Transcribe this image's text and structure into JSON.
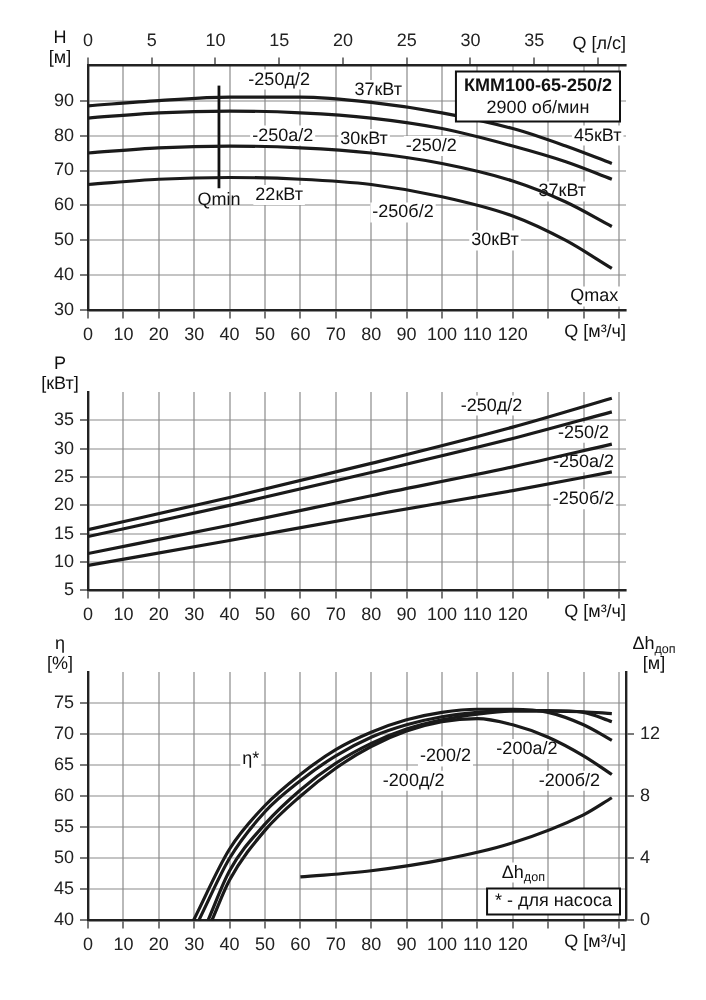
{
  "chart_data": [
    {
      "type": "line",
      "title": "КММ100-65-250/2",
      "subtitle": "2900 об/мин",
      "xlabel": "Q [м³/ч]",
      "x2label": "Q [л/с]",
      "ylabel": "H [м]",
      "xlim": [
        0,
        152
      ],
      "xticks": [
        0,
        10,
        20,
        30,
        40,
        50,
        60,
        70,
        80,
        90,
        100,
        110,
        120,
        {
          "value": 130,
          "label": null
        },
        {
          "value": 140,
          "label": null
        },
        {
          "value": 150,
          "label": null
        }
      ],
      "x2lim": [
        0,
        42.2
      ],
      "x2ticks": [
        0,
        5,
        10,
        15,
        20,
        25,
        30,
        35,
        {
          "value": 40,
          "label": null
        }
      ],
      "ylim": [
        30,
        100
      ],
      "yticks": [
        30,
        40,
        50,
        60,
        70,
        80,
        90
      ],
      "grid": true,
      "x": [
        0,
        20,
        40,
        60,
        80,
        100,
        120,
        135,
        148
      ],
      "series": [
        {
          "color": "#1a1a1a",
          "values": [
            88.5,
            90,
            91,
            91,
            89.5,
            86.5,
            82,
            77,
            72
          ]
        },
        {
          "color": "#1a1a1a",
          "values": [
            85,
            86.5,
            87,
            86.5,
            85,
            82,
            77,
            72.5,
            67.5
          ]
        },
        {
          "color": "#1a1a1a",
          "values": [
            75,
            76.5,
            77,
            76.5,
            75,
            72,
            67,
            61,
            54
          ]
        },
        {
          "color": "#1a1a1a",
          "values": [
            66,
            67.5,
            68,
            67.5,
            66,
            62.5,
            57,
            50,
            42
          ]
        }
      ],
      "ref_lines": [
        {
          "axis": "x",
          "value": 37,
          "label": "Qmin"
        }
      ],
      "annotations": [
        {
          "text": "-250д/2",
          "x": 54,
          "y": 96
        },
        {
          "text": "37кВт",
          "x": 82,
          "y": 93
        },
        {
          "text": "-250а/2",
          "x": 55,
          "y": 80
        },
        {
          "text": "30кВт",
          "x": 78,
          "y": 79
        },
        {
          "text": "-250/2",
          "x": 97,
          "y": 77
        },
        {
          "text": "45кВт",
          "x": 144,
          "y": 80
        },
        {
          "text": "22кВт",
          "x": 54,
          "y": 63
        },
        {
          "text": "-250б/2",
          "x": 89,
          "y": 58
        },
        {
          "text": "37кВт",
          "x": 134,
          "y": 64
        },
        {
          "text": "30кВт",
          "x": 115,
          "y": 50
        },
        {
          "text": "Qmax",
          "x": 143,
          "y": 34
        }
      ]
    },
    {
      "type": "line",
      "xlabel": "Q [м³/ч]",
      "ylabel": "P [кВт]",
      "xlim": [
        0,
        152
      ],
      "xticks": [
        0,
        10,
        20,
        30,
        40,
        50,
        60,
        70,
        80,
        90,
        100,
        110,
        120,
        {
          "value": 130,
          "label": null
        },
        {
          "value": 140,
          "label": null
        },
        {
          "value": 150,
          "label": null
        }
      ],
      "ylim": [
        5,
        40
      ],
      "yticks": [
        5,
        10,
        15,
        20,
        25,
        30,
        35
      ],
      "grid": true,
      "x": [
        0,
        40,
        80,
        120,
        148
      ],
      "series": [
        {
          "color": "#1a1a1a",
          "values": [
            15.7,
            21.4,
            27.4,
            33.8,
            38.9
          ]
        },
        {
          "color": "#1a1a1a",
          "values": [
            14.5,
            20,
            25.8,
            31.8,
            36.5
          ]
        },
        {
          "color": "#1a1a1a",
          "values": [
            11.5,
            16.5,
            21.7,
            26.8,
            30.8
          ]
        },
        {
          "color": "#1a1a1a",
          "values": [
            9.4,
            13.8,
            18.3,
            22.6,
            25.9
          ]
        }
      ],
      "annotations": [
        {
          "text": "-250д/2",
          "x": 114,
          "y": 37.6
        },
        {
          "text": "-250/2",
          "x": 140,
          "y": 32.8
        },
        {
          "text": "-250а/2",
          "x": 140,
          "y": 27.6
        },
        {
          "text": "-250б/2",
          "x": 140,
          "y": 21.1
        }
      ]
    },
    {
      "type": "line",
      "xlabel": "Q [м³/ч]",
      "ylabel": "η [%]",
      "y2label": "Δh$_{доп}$ [м]",
      "xlim": [
        0,
        152
      ],
      "xticks": [
        0,
        10,
        20,
        30,
        40,
        50,
        60,
        70,
        80,
        90,
        100,
        110,
        120,
        {
          "value": 130,
          "label": null
        },
        {
          "value": 140,
          "label": null
        },
        {
          "value": 150,
          "label": null
        }
      ],
      "ylim": [
        40,
        80
      ],
      "yticks": [
        40,
        45,
        50,
        55,
        60,
        65,
        70,
        75
      ],
      "y2lim": [
        0,
        16
      ],
      "y2ticks": [
        0,
        4,
        8,
        12
      ],
      "grid": true,
      "series": [
        {
          "color": "#1a1a1a",
          "x": [
            29.8,
            40,
            50,
            60,
            70,
            80,
            90,
            100,
            110,
            120,
            130,
            140,
            148
          ],
          "values": [
            40,
            51.5,
            58.5,
            63.5,
            67.5,
            70.3,
            72.3,
            73.5,
            74,
            74,
            73.5,
            71.5,
            69
          ]
        },
        {
          "color": "#1a1a1a",
          "x": [
            31.3,
            40,
            50,
            60,
            70,
            80,
            90,
            100,
            110,
            120,
            130,
            140,
            148
          ],
          "values": [
            40,
            50,
            57.5,
            62.5,
            66.5,
            69.5,
            71.5,
            72.8,
            73.5,
            73.8,
            73.8,
            73.5,
            72
          ]
        },
        {
          "color": "#1a1a1a",
          "x": [
            33.9,
            40,
            50,
            60,
            70,
            80,
            90,
            100,
            110,
            120,
            130,
            140,
            148
          ],
          "values": [
            40,
            48,
            55.5,
            61,
            65.3,
            68.5,
            70.8,
            72.3,
            73.2,
            73.7,
            73.7,
            73.6,
            73.3
          ]
        },
        {
          "color": "#1a1a1a",
          "x": [
            35,
            40,
            50,
            60,
            70,
            80,
            90,
            100,
            110,
            120,
            130,
            140,
            148
          ],
          "values": [
            40,
            46.5,
            54.5,
            60,
            64.5,
            68,
            70.5,
            72,
            72.5,
            71.5,
            69.5,
            66.5,
            63.5
          ]
        },
        {
          "color": "#1a1a1a",
          "axis": "y2",
          "x": [
            60,
            80,
            100,
            120,
            140,
            148
          ],
          "values": [
            2.8,
            3.2,
            3.9,
            5,
            6.8,
            7.9
          ]
        }
      ],
      "annotations": [
        {
          "text": "η*",
          "x": 46,
          "y": 66
        },
        {
          "text": "-200/2",
          "x": 101,
          "y": 66.4
        },
        {
          "text": "-200а/2",
          "x": 124,
          "y": 67.6
        },
        {
          "text": "-200д/2",
          "x": 92,
          "y": 62.5
        },
        {
          "text": "-200б/2",
          "x": 136,
          "y": 62.5
        },
        {
          "text": "Δh$_{доп}$",
          "x": 123,
          "y": 47.7
        },
        "* - для насоса"
      ]
    }
  ]
}
